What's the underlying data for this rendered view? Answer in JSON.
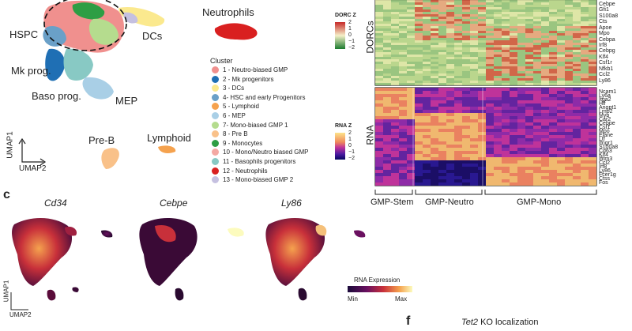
{
  "panel_b": {
    "labels": {
      "hspc": "HSPC",
      "dcs": "DCs",
      "neutrophils": "Neutrophils",
      "mk_prog": "Mk prog.",
      "baso_prog": "Baso prog.",
      "mep": "MEP",
      "pre_b": "Pre-B",
      "lymphoid": "Lymphoid",
      "umap1": "UMAP1",
      "umap2": "UMAP2"
    },
    "legend": {
      "title": "Cluster",
      "items": [
        {
          "label": "1 - Neutro-biased GMP",
          "color": "#f0908e"
        },
        {
          "label": "2 - Mk progenitors",
          "color": "#1f6fb4"
        },
        {
          "label": "3 - DCs",
          "color": "#fbe98e"
        },
        {
          "label": "4- HSC and early Progenitors",
          "color": "#6aa0c8"
        },
        {
          "label": "5 - Lymphoid",
          "color": "#f5a24e"
        },
        {
          "label": "6 - MEP",
          "color": "#a9cfe6"
        },
        {
          "label": "7- Mono-biased GMP 1",
          "color": "#b5dc8e"
        },
        {
          "label": "8 - Pre B",
          "color": "#f9c189"
        },
        {
          "label": "9 - Monocytes",
          "color": "#2d9e44"
        },
        {
          "label": "10 - Mono/Neutro biased GMP",
          "color": "#f4a9a3"
        },
        {
          "label": "11 - Basophils progenitors",
          "color": "#88c9c4"
        },
        {
          "label": "12 - Neutrophils",
          "color": "#d92020"
        },
        {
          "label": "13 - Mono-biased GMP 2",
          "color": "#c5c0e0"
        }
      ]
    },
    "dorc_scale": {
      "title": "DORC Z",
      "ticks": [
        "2",
        "1",
        "0",
        "−1",
        "−2"
      ]
    },
    "rna_scale": {
      "title": "RNA Z",
      "ticks": [
        "2",
        "1",
        "0",
        "−1",
        "−2"
      ]
    },
    "heatmap": {
      "top_label": "DORCs",
      "bottom_label": "RNA",
      "dorc_genes": [
        "Cebpe",
        "Gfi1",
        "S100a8",
        "Cts",
        "Apoe",
        "Mpo",
        "Cebpa",
        "Irf8",
        "Cebpg",
        "Klf4",
        "Csf1r",
        "Nfkb1",
        "Ccl2",
        "Ly86"
      ],
      "rna_genes": [
        "Ncam1",
        "Ly6a",
        "Itga2",
        "Hlf",
        "Angpt1",
        "Lmo2",
        "Myb",
        "Car2",
        "Cebpe",
        "Csf1",
        "Mpo",
        "Elane",
        "Ltf",
        "Ifngr1",
        "S100a8",
        "Cd63",
        "Klf4",
        "Ifitm3",
        "Ccl2",
        "Irf8",
        "Ly86",
        "Fcer1g",
        "Ctss",
        "Fos"
      ],
      "groups": [
        "GMP-Stem",
        "GMP-Neutro",
        "GMP-Mono"
      ]
    }
  },
  "panel_c": {
    "letter": "c",
    "genes": [
      "Cd34",
      "Cebpe",
      "Ly86"
    ],
    "colorbar": {
      "title": "RNA Expression",
      "min": "Min",
      "max": "Max"
    },
    "umap1": "UMAP1",
    "umap2": "UMAP2"
  },
  "panel_f": {
    "letter": "f",
    "title_gene": "Tet2",
    "title_rest": " KO localization"
  },
  "colors": {
    "neutro": "#d92020",
    "dorc_high": "#c62828",
    "dorc_mid": "#f5f0c8",
    "dorc_low": "#1b7a2e",
    "rna_high": "#fde38a",
    "rna_mid": "#d63c8e",
    "rna_low": "#0a0a7a"
  }
}
